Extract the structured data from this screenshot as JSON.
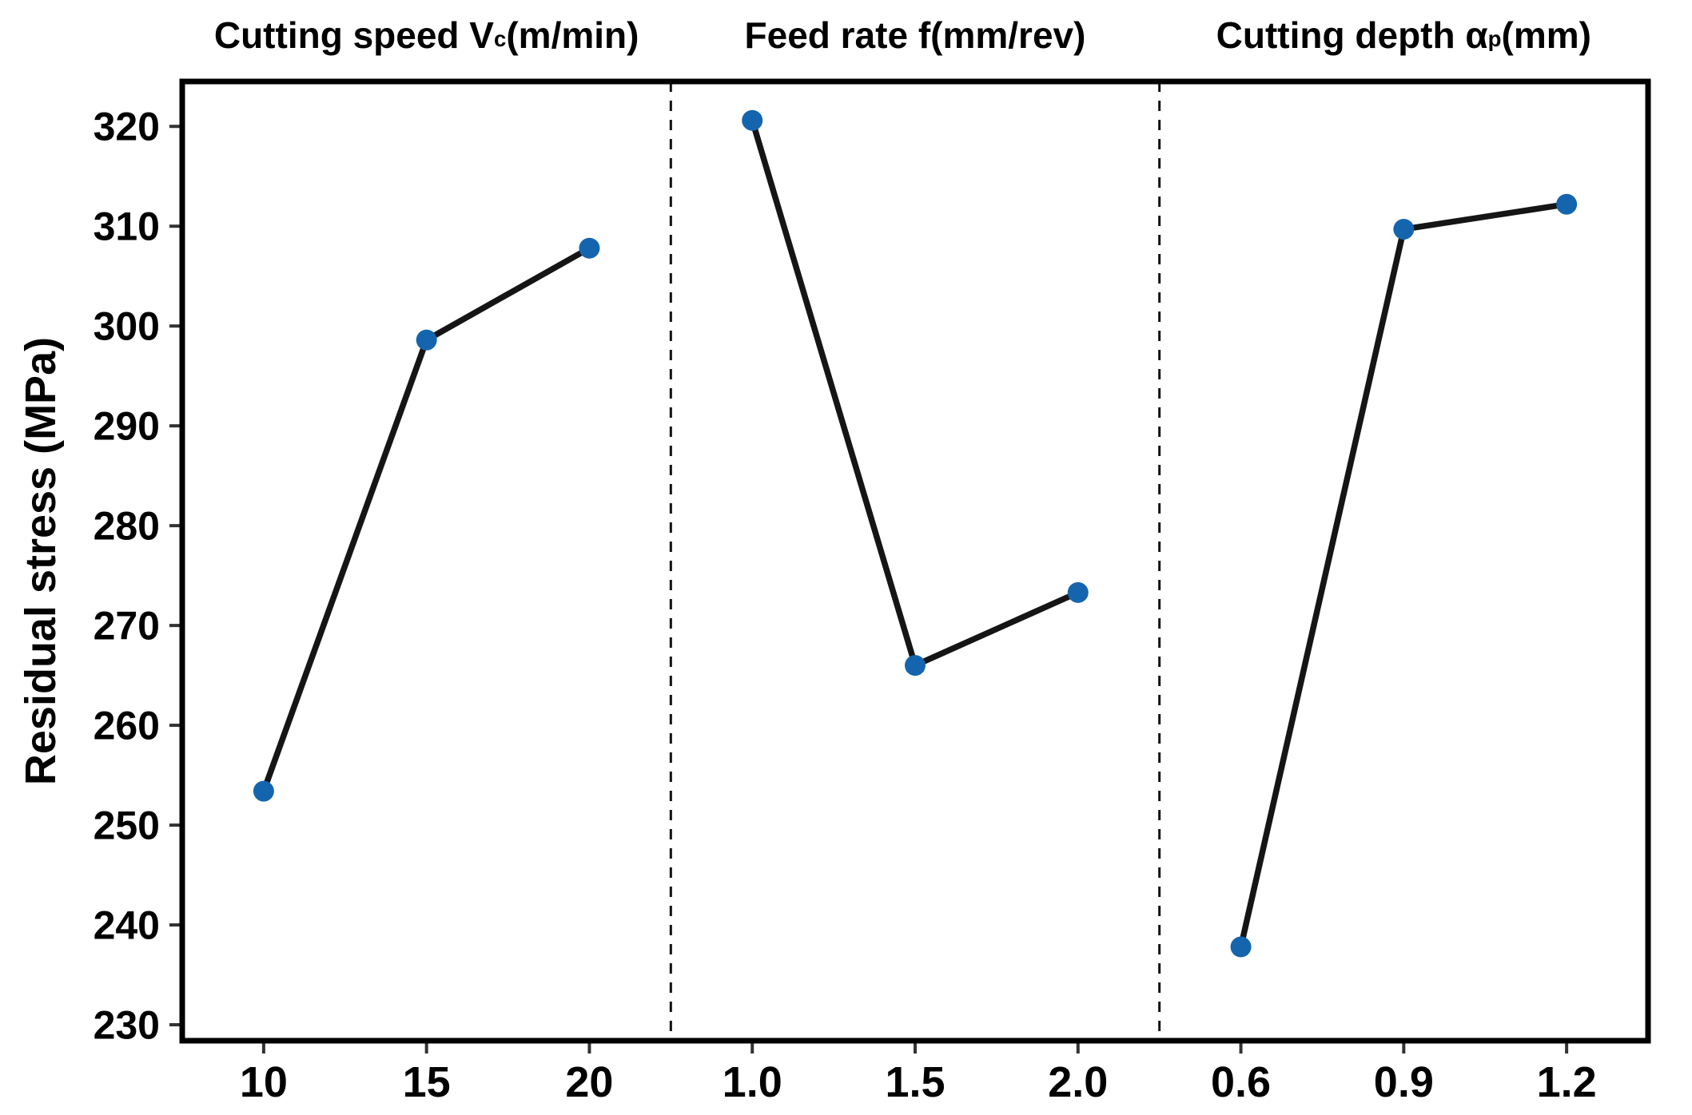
{
  "figure": {
    "background": "#ffffff",
    "text_color": "#000000"
  },
  "chart_data": {
    "type": "line",
    "chart_style": "main-effects-plot",
    "title": "",
    "xlabel": "",
    "ylabel": "Residual stress (MPa)",
    "ylim": [
      228.4,
      324.5
    ],
    "yticks": [
      230,
      240,
      250,
      260,
      270,
      280,
      290,
      300,
      310,
      320
    ],
    "grid": false,
    "legend_position": "none",
    "colors": {
      "marker": "#1565ae",
      "line": "#151515",
      "frame": "#000000",
      "divider": "#111111",
      "tick": "#333333"
    },
    "panels": [
      {
        "title_pre": "Cutting speed V",
        "title_sub": "c",
        "title_post": "(m/min)",
        "categories": [
          "10",
          "15",
          "20"
        ],
        "values": [
          253.4,
          298.6,
          307.8
        ]
      },
      {
        "title_pre": "Feed rate f",
        "title_sub": "",
        "title_post": "(mm/rev)",
        "categories": [
          "1.0",
          "1.5",
          "2.0"
        ],
        "values": [
          320.6,
          266.0,
          273.3
        ]
      },
      {
        "title_pre": "Cutting depth α",
        "title_sub": "p",
        "title_post": "(mm)",
        "categories": [
          "0.6",
          "0.9",
          "1.2"
        ],
        "values": [
          237.8,
          309.7,
          312.2
        ]
      }
    ]
  }
}
